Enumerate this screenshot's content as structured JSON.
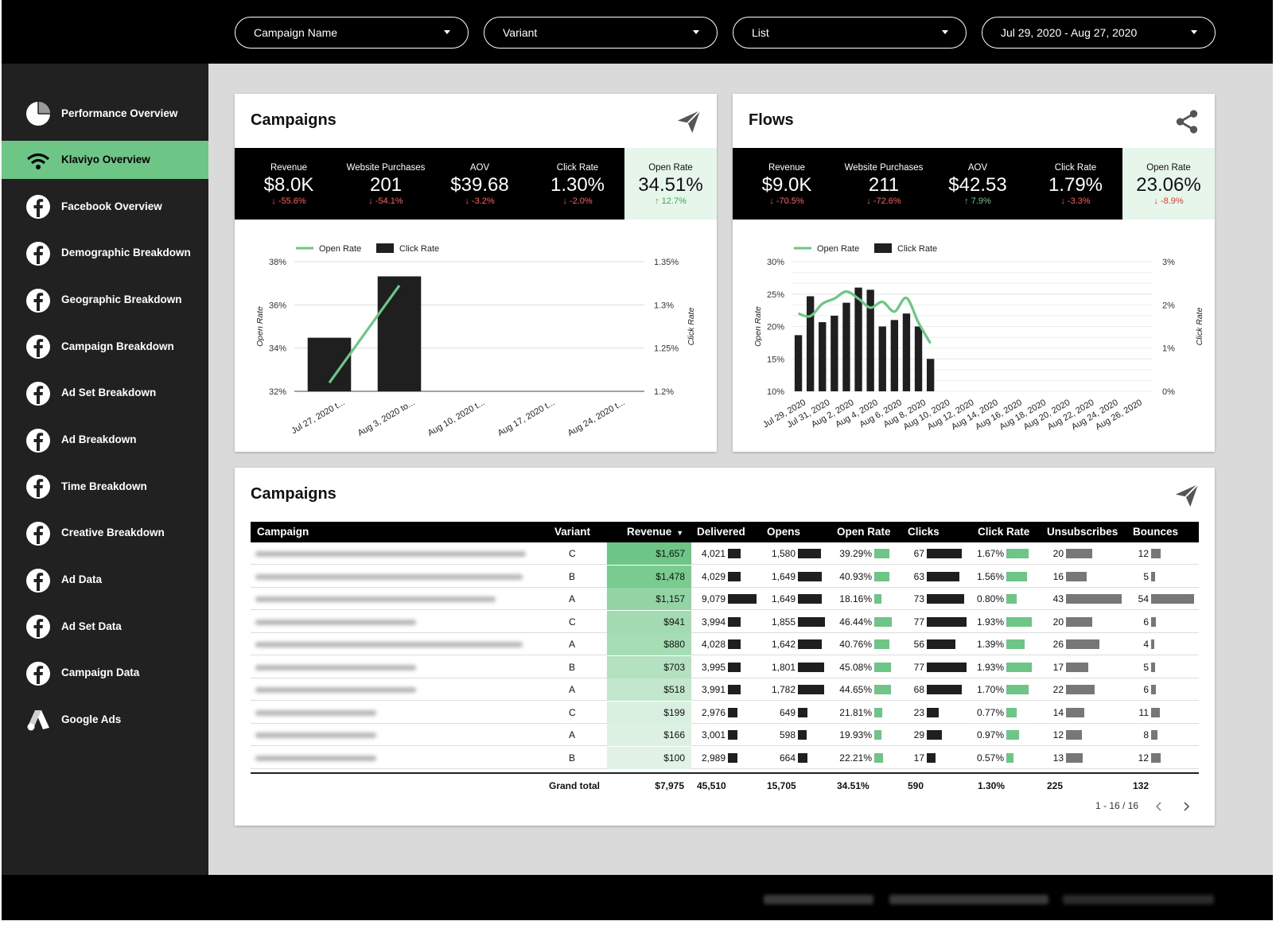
{
  "filters": [
    {
      "label": "Campaign Name"
    },
    {
      "label": "Variant"
    },
    {
      "label": "List"
    },
    {
      "label": "Jul 29, 2020 - Aug 27, 2020"
    }
  ],
  "sidebar": {
    "items": [
      {
        "label": "Performance Overview",
        "icon": "pie-chart-icon",
        "active": false
      },
      {
        "label": "Klaviyo Overview",
        "icon": "wifi-signal-icon",
        "active": true
      },
      {
        "label": "Facebook Overview",
        "icon": "facebook-icon",
        "active": false
      },
      {
        "label": "Demographic Breakdown",
        "icon": "facebook-icon",
        "active": false
      },
      {
        "label": "Geographic Breakdown",
        "icon": "facebook-icon",
        "active": false
      },
      {
        "label": "Campaign Breakdown",
        "icon": "facebook-icon",
        "active": false
      },
      {
        "label": "Ad Set Breakdown",
        "icon": "facebook-icon",
        "active": false
      },
      {
        "label": "Ad Breakdown",
        "icon": "facebook-icon",
        "active": false
      },
      {
        "label": "Time Breakdown",
        "icon": "facebook-icon",
        "active": false
      },
      {
        "label": "Creative Breakdown",
        "icon": "facebook-icon",
        "active": false
      },
      {
        "label": "Ad Data",
        "icon": "facebook-icon",
        "active": false
      },
      {
        "label": "Ad Set Data",
        "icon": "facebook-icon",
        "active": false
      },
      {
        "label": "Campaign Data",
        "icon": "facebook-icon",
        "active": false
      },
      {
        "label": "Google Ads",
        "icon": "google-ads-icon",
        "active": false
      }
    ]
  },
  "campaigns_card": {
    "title": "Campaigns",
    "icon": "paper-plane-icon",
    "kpis": [
      {
        "label": "Revenue",
        "value": "$8.0K",
        "change": "-55.6%",
        "direction": "down"
      },
      {
        "label": "Website Purchases",
        "value": "201",
        "change": "-54.1%",
        "direction": "down"
      },
      {
        "label": "AOV",
        "value": "$39.68",
        "change": "-3.2%",
        "direction": "down"
      },
      {
        "label": "Click Rate",
        "value": "1.30%",
        "change": "-2.0%",
        "direction": "down"
      },
      {
        "label": "Open Rate",
        "value": "34.51%",
        "change": "12.7%",
        "direction": "up",
        "highlight": true
      }
    ]
  },
  "flows_card": {
    "title": "Flows",
    "icon": "share-icon",
    "kpis": [
      {
        "label": "Revenue",
        "value": "$9.0K",
        "change": "-70.5%",
        "direction": "down"
      },
      {
        "label": "Website Purchases",
        "value": "211",
        "change": "-72.6%",
        "direction": "down"
      },
      {
        "label": "AOV",
        "value": "$42.53",
        "change": "7.9%",
        "direction": "up"
      },
      {
        "label": "Click Rate",
        "value": "1.79%",
        "change": "-3.3%",
        "direction": "down"
      },
      {
        "label": "Open Rate",
        "value": "23.06%",
        "change": "-8.9%",
        "direction": "down",
        "highlight": true
      }
    ]
  },
  "chart_data": [
    {
      "type": "bar",
      "legend": [
        "Open Rate",
        "Click Rate"
      ],
      "legend_placement": "top",
      "colors": {
        "Open Rate": "#6dc685",
        "Click Rate": "#1f1f1f"
      },
      "categories": [
        "Jul 27, 2020 t...",
        "Aug 3, 2020 to...",
        "Aug 10, 2020 t...",
        "Aug 17, 2020 t...",
        "Aug 24, 2020 t..."
      ],
      "series": [
        {
          "name": "Click Rate",
          "type": "bar",
          "axis": "right",
          "values": [
            1.262,
            1.333,
            null,
            null,
            null
          ]
        },
        {
          "name": "Open Rate",
          "type": "line",
          "axis": "left",
          "values": [
            32.4,
            36.9,
            null,
            null,
            null
          ]
        }
      ],
      "ylabel": "Open Rate",
      "y2label": "Click Rate",
      "ylim": [
        32,
        38
      ],
      "y2lim": [
        1.2,
        1.35
      ],
      "yticks": [
        "32%",
        "34%",
        "36%",
        "38%"
      ],
      "y2ticks": [
        "1.2%",
        "1.25%",
        "1.3%",
        "1.35%"
      ],
      "grid": true
    },
    {
      "type": "bar",
      "legend": [
        "Open Rate",
        "Click Rate"
      ],
      "legend_placement": "top",
      "colors": {
        "Open Rate": "#6dc685",
        "Click Rate": "#1f1f1f"
      },
      "x": [
        "Jul 29",
        "Jul 30",
        "Jul 31",
        "Aug 1",
        "Aug 2",
        "Aug 3",
        "Aug 4",
        "Aug 5",
        "Aug 6",
        "Aug 7",
        "Aug 8",
        "Aug 9",
        "Aug 10",
        "Aug 11",
        "Aug 12",
        "Aug 13",
        "Aug 14",
        "Aug 15",
        "Aug 16",
        "Aug 17",
        "Aug 18",
        "Aug 19",
        "Aug 20",
        "Aug 21",
        "Aug 22",
        "Aug 23",
        "Aug 24",
        "Aug 25",
        "Aug 26",
        "Aug 27"
      ],
      "xtick_labels": [
        "Jul 29, 2020",
        "Jul 31, 2020",
        "Aug 2, 2020",
        "Aug 4, 2020",
        "Aug 6, 2020",
        "Aug 8, 2020",
        "Aug 10, 2020",
        "Aug 12, 2020",
        "Aug 14, 2020",
        "Aug 16, 2020",
        "Aug 18, 2020",
        "Aug 20, 2020",
        "Aug 22, 2020",
        "Aug 24, 2020",
        "Aug 26, 2020"
      ],
      "series": [
        {
          "name": "Click Rate",
          "type": "bar",
          "axis": "right",
          "values": [
            1.3,
            2.2,
            1.6,
            1.75,
            2.05,
            2.4,
            2.35,
            1.5,
            1.65,
            1.8,
            1.5,
            0.75,
            null,
            null,
            null,
            null,
            null,
            null,
            null,
            null,
            null,
            null,
            null,
            null,
            null,
            null,
            null,
            null,
            null,
            null
          ]
        },
        {
          "name": "Open Rate",
          "type": "line",
          "axis": "left",
          "values": [
            22.0,
            21.6,
            23.5,
            24.3,
            25.4,
            24.3,
            22.9,
            23.8,
            22.3,
            24.4,
            20.6,
            17.4,
            null,
            null,
            null,
            null,
            null,
            null,
            null,
            null,
            null,
            null,
            null,
            null,
            null,
            null,
            null,
            null,
            null,
            null
          ]
        }
      ],
      "ylabel": "Open Rate",
      "y2label": "Click Rate",
      "ylim": [
        10,
        30
      ],
      "y2lim": [
        0,
        3
      ],
      "yticks": [
        "10%",
        "15%",
        "20%",
        "25%",
        "30%"
      ],
      "y2ticks": [
        "0%",
        "1%",
        "2%",
        "3%"
      ],
      "grid": true
    }
  ],
  "table": {
    "title": "Campaigns",
    "icon": "paper-plane-icon",
    "sort_indicator": "▼",
    "columns": [
      "Campaign",
      "Variant",
      "Revenue",
      "Delivered",
      "Opens",
      "Open Rate",
      "Clicks",
      "Click Rate",
      "Unsubscribes",
      "Bounces"
    ],
    "rows": [
      {
        "variant": "C",
        "revenue": "$1,657",
        "rev_value": 1657,
        "delivered": "4,021",
        "delivered_v": 4021,
        "opens": "1,580",
        "opens_v": 1580,
        "open_rate": "39.29%",
        "open_rate_v": 39.29,
        "clicks": "67",
        "clicks_v": 67,
        "click_rate": "1.67%",
        "click_rate_v": 1.67,
        "unsubs": "20",
        "unsubs_v": 20,
        "bounces": "12",
        "bounces_v": 12
      },
      {
        "variant": "B",
        "revenue": "$1,478",
        "rev_value": 1478,
        "delivered": "4,029",
        "delivered_v": 4029,
        "opens": "1,649",
        "opens_v": 1649,
        "open_rate": "40.93%",
        "open_rate_v": 40.93,
        "clicks": "63",
        "clicks_v": 63,
        "click_rate": "1.56%",
        "click_rate_v": 1.56,
        "unsubs": "16",
        "unsubs_v": 16,
        "bounces": "5",
        "bounces_v": 5
      },
      {
        "variant": "A",
        "revenue": "$1,157",
        "rev_value": 1157,
        "delivered": "9,079",
        "delivered_v": 9079,
        "opens": "1,649",
        "opens_v": 1649,
        "open_rate": "18.16%",
        "open_rate_v": 18.16,
        "clicks": "73",
        "clicks_v": 73,
        "click_rate": "0.80%",
        "click_rate_v": 0.8,
        "unsubs": "43",
        "unsubs_v": 43,
        "bounces": "54",
        "bounces_v": 54
      },
      {
        "variant": "C",
        "revenue": "$941",
        "rev_value": 941,
        "delivered": "3,994",
        "delivered_v": 3994,
        "opens": "1,855",
        "opens_v": 1855,
        "open_rate": "46.44%",
        "open_rate_v": 46.44,
        "clicks": "77",
        "clicks_v": 77,
        "click_rate": "1.93%",
        "click_rate_v": 1.93,
        "unsubs": "20",
        "unsubs_v": 20,
        "bounces": "6",
        "bounces_v": 6
      },
      {
        "variant": "A",
        "revenue": "$880",
        "rev_value": 880,
        "delivered": "4,028",
        "delivered_v": 4028,
        "opens": "1,642",
        "opens_v": 1642,
        "open_rate": "40.76%",
        "open_rate_v": 40.76,
        "clicks": "56",
        "clicks_v": 56,
        "click_rate": "1.39%",
        "click_rate_v": 1.39,
        "unsubs": "26",
        "unsubs_v": 26,
        "bounces": "4",
        "bounces_v": 4
      },
      {
        "variant": "B",
        "revenue": "$703",
        "rev_value": 703,
        "delivered": "3,995",
        "delivered_v": 3995,
        "opens": "1,801",
        "opens_v": 1801,
        "open_rate": "45.08%",
        "open_rate_v": 45.08,
        "clicks": "77",
        "clicks_v": 77,
        "click_rate": "1.93%",
        "click_rate_v": 1.93,
        "unsubs": "17",
        "unsubs_v": 17,
        "bounces": "5",
        "bounces_v": 5
      },
      {
        "variant": "A",
        "revenue": "$518",
        "rev_value": 518,
        "delivered": "3,991",
        "delivered_v": 3991,
        "opens": "1,782",
        "opens_v": 1782,
        "open_rate": "44.65%",
        "open_rate_v": 44.65,
        "clicks": "68",
        "clicks_v": 68,
        "click_rate": "1.70%",
        "click_rate_v": 1.7,
        "unsubs": "22",
        "unsubs_v": 22,
        "bounces": "6",
        "bounces_v": 6
      },
      {
        "variant": "C",
        "revenue": "$199",
        "rev_value": 199,
        "delivered": "2,976",
        "delivered_v": 2976,
        "opens": "649",
        "opens_v": 649,
        "open_rate": "21.81%",
        "open_rate_v": 21.81,
        "clicks": "23",
        "clicks_v": 23,
        "click_rate": "0.77%",
        "click_rate_v": 0.77,
        "unsubs": "14",
        "unsubs_v": 14,
        "bounces": "11",
        "bounces_v": 11
      },
      {
        "variant": "A",
        "revenue": "$166",
        "rev_value": 166,
        "delivered": "3,001",
        "delivered_v": 3001,
        "opens": "598",
        "opens_v": 598,
        "open_rate": "19.93%",
        "open_rate_v": 19.93,
        "clicks": "29",
        "clicks_v": 29,
        "click_rate": "0.97%",
        "click_rate_v": 0.97,
        "unsubs": "12",
        "unsubs_v": 12,
        "bounces": "8",
        "bounces_v": 8
      },
      {
        "variant": "B",
        "revenue": "$100",
        "rev_value": 100,
        "delivered": "2,989",
        "delivered_v": 2989,
        "opens": "664",
        "opens_v": 664,
        "open_rate": "22.21%",
        "open_rate_v": 22.21,
        "clicks": "17",
        "clicks_v": 17,
        "click_rate": "0.57%",
        "click_rate_v": 0.57,
        "unsubs": "13",
        "unsubs_v": 13,
        "bounces": "12",
        "bounces_v": 12
      }
    ],
    "totals": {
      "label": "Grand total",
      "revenue": "$7,975",
      "delivered": "45,510",
      "opens": "15,705",
      "open_rate": "34.51%",
      "clicks": "590",
      "click_rate": "1.30%",
      "unsubs": "225",
      "bounces": "132"
    },
    "pagination": "1 - 16 / 16"
  }
}
